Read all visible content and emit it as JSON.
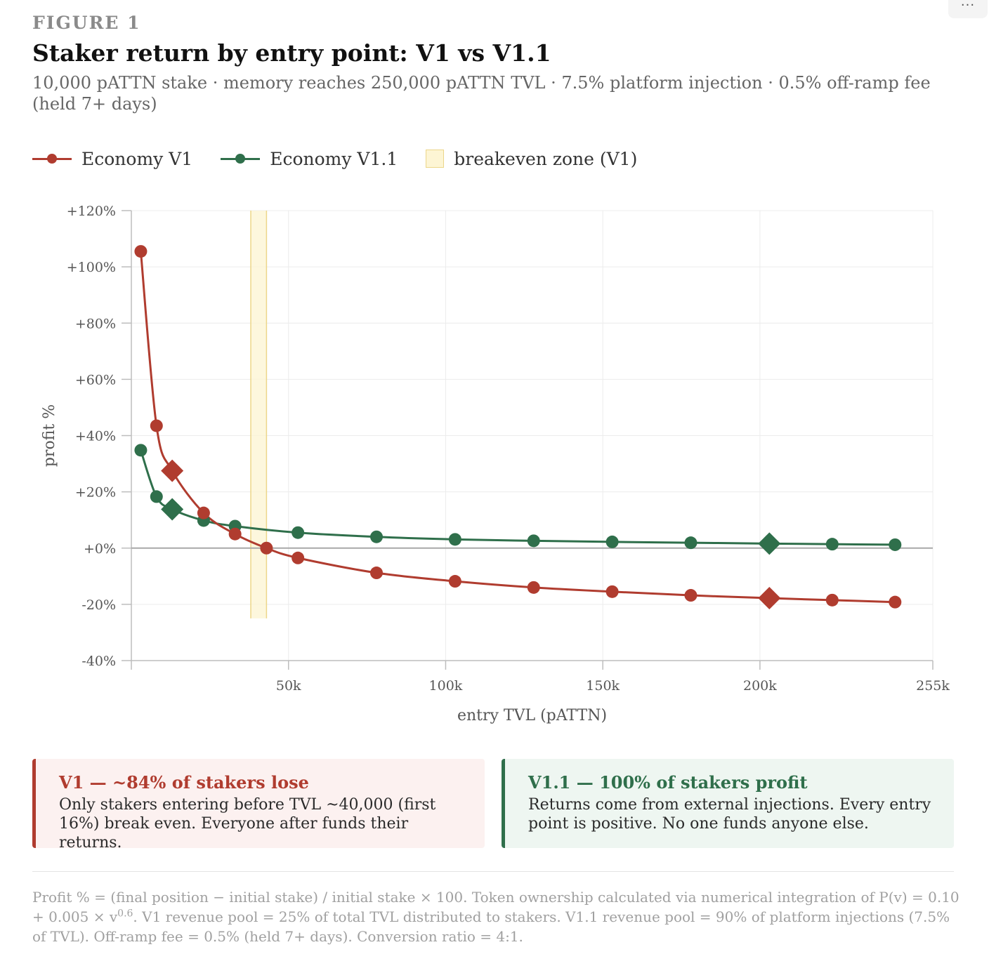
{
  "menu": {
    "label": "..."
  },
  "eyebrow": "FIGURE 1",
  "title": "Staker return by entry point: V1 vs V1.1",
  "subtitle": "10,000 pATTN stake · memory reaches 250,000 pATTN TVL · 7.5% platform injection · 0.5% off-ramp fee (held 7+ days)",
  "legend": {
    "v1": "Economy V1",
    "v11": "Economy V1.1",
    "zone": "breakeven zone (V1)"
  },
  "colors": {
    "v1": "#b03c2f",
    "v11": "#2f6f4b",
    "zone_fill": "#fdf5d4",
    "zone_stroke": "#ecd68a",
    "grid": "#ececec",
    "axis": "#bdbdbd"
  },
  "chart_data": {
    "type": "line",
    "title": "Staker return by entry point: V1 vs V1.1",
    "xlabel": "entry TVL (pATTN)",
    "ylabel": "profit %",
    "xlim": [
      0,
      255000
    ],
    "ylim": [
      -40,
      120
    ],
    "grid": true,
    "legend_position": "top-left",
    "x_ticks": [
      {
        "value": 50000,
        "label": "50k"
      },
      {
        "value": 100000,
        "label": "100k"
      },
      {
        "value": 150000,
        "label": "150k"
      },
      {
        "value": 200000,
        "label": "200k"
      },
      {
        "value": 255000,
        "label": "255k"
      }
    ],
    "y_ticks": [
      {
        "value": 120,
        "label": "+120%"
      },
      {
        "value": 100,
        "label": "+100%"
      },
      {
        "value": 80,
        "label": "+80%"
      },
      {
        "value": 60,
        "label": "+60%"
      },
      {
        "value": 40,
        "label": "+40%"
      },
      {
        "value": 20,
        "label": "+20%"
      },
      {
        "value": 0,
        "label": "+0%"
      },
      {
        "value": -20,
        "label": "-20%"
      },
      {
        "value": -40,
        "label": "-40%"
      }
    ],
    "breakeven_zone": {
      "x_start": 38000,
      "x_end": 43000,
      "y_from": -25,
      "y_to": 120
    },
    "series": [
      {
        "name": "Economy V1",
        "points": [
          {
            "x": 3000,
            "y": 105.5
          },
          {
            "x": 8000,
            "y": 43.5
          },
          {
            "x": 13000,
            "y": 27.5,
            "marker": "diamond"
          },
          {
            "x": 23000,
            "y": 12.5
          },
          {
            "x": 33000,
            "y": 5
          },
          {
            "x": 43000,
            "y": 0
          },
          {
            "x": 53000,
            "y": -3.5
          },
          {
            "x": 78000,
            "y": -8.8
          },
          {
            "x": 103000,
            "y": -11.8
          },
          {
            "x": 128000,
            "y": -14
          },
          {
            "x": 153000,
            "y": -15.5
          },
          {
            "x": 178000,
            "y": -16.8
          },
          {
            "x": 203000,
            "y": -17.8,
            "marker": "diamond"
          },
          {
            "x": 223000,
            "y": -18.5
          },
          {
            "x": 243000,
            "y": -19.2
          }
        ]
      },
      {
        "name": "Economy V1.1",
        "points": [
          {
            "x": 3000,
            "y": 34.8
          },
          {
            "x": 8000,
            "y": 18.3
          },
          {
            "x": 13000,
            "y": 13.8,
            "marker": "diamond"
          },
          {
            "x": 23000,
            "y": 9.8
          },
          {
            "x": 33000,
            "y": 7.8
          },
          {
            "x": 53000,
            "y": 5.5
          },
          {
            "x": 78000,
            "y": 4
          },
          {
            "x": 103000,
            "y": 3.1
          },
          {
            "x": 128000,
            "y": 2.6
          },
          {
            "x": 153000,
            "y": 2.2
          },
          {
            "x": 178000,
            "y": 1.9
          },
          {
            "x": 203000,
            "y": 1.6,
            "marker": "diamond"
          },
          {
            "x": 223000,
            "y": 1.4
          },
          {
            "x": 243000,
            "y": 1.2
          }
        ]
      }
    ]
  },
  "cards": {
    "v1": {
      "title": "V1 — ~84% of stakers lose",
      "body": "Only stakers entering before TVL ~40,000 (first 16%) break even. Everyone after funds their returns."
    },
    "v11": {
      "title": "V1.1 — 100% of stakers profit",
      "body": "Returns come from external injections. Every entry point is positive. No one funds anyone else."
    }
  },
  "footnote": {
    "part1": "Profit % = (final position − initial stake) / initial stake × 100. Token ownership calculated via numerical integration of P(v) = 0.10 + 0.005 × v",
    "exponent": "0.6",
    "part2": ". V1 revenue pool = 25% of total TVL distributed to stakers. V1.1 revenue pool = 90% of platform injections (7.5% of TVL). Off-ramp fee = 0.5% (held 7+ days). Conversion ratio = 4:1."
  }
}
